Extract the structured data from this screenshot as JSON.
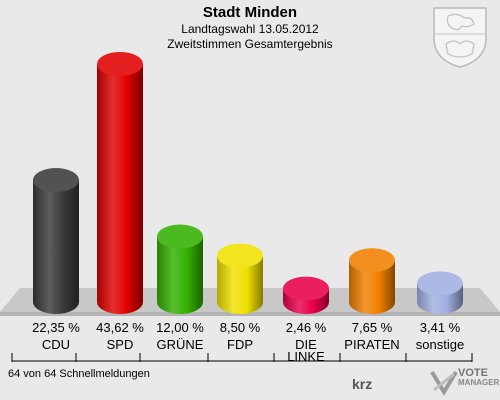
{
  "header": {
    "title": "Stadt Minden",
    "subtitle1": "Landtagswahl 13.05.2012",
    "subtitle2": "Zweitstimmen Gesamtergebnis"
  },
  "footer": {
    "status": "64 von 64 Schnellmeldungen",
    "krz_logo": "krz",
    "vote_manager_line1": "VOTE",
    "vote_manager_line2": "MANAGER"
  },
  "chart_data": {
    "type": "bar",
    "categories": [
      "CDU",
      "SPD",
      "GRÜNE",
      "FDP",
      "DIE LINKE",
      "PIRATEN",
      "sonstige"
    ],
    "category_lines": [
      [
        "CDU"
      ],
      [
        "SPD"
      ],
      [
        "GRÜNE"
      ],
      [
        "FDP"
      ],
      [
        "DIE",
        "LINKE"
      ],
      [
        "PIRATEN"
      ],
      [
        "sonstige"
      ]
    ],
    "values": [
      22.35,
      43.62,
      12.0,
      8.5,
      2.46,
      7.65,
      3.41
    ],
    "value_labels": [
      "22,35 %",
      "43,62 %",
      "12,00 %",
      "8,50 %",
      "2,46 %",
      "7,65 %",
      "3,41 %"
    ],
    "colors": [
      "#3a3a3a",
      "#e00000",
      "#33b000",
      "#f0e000",
      "#e8004a",
      "#f08000",
      "#a0b0e0"
    ],
    "ylim": [
      0,
      45
    ]
  }
}
